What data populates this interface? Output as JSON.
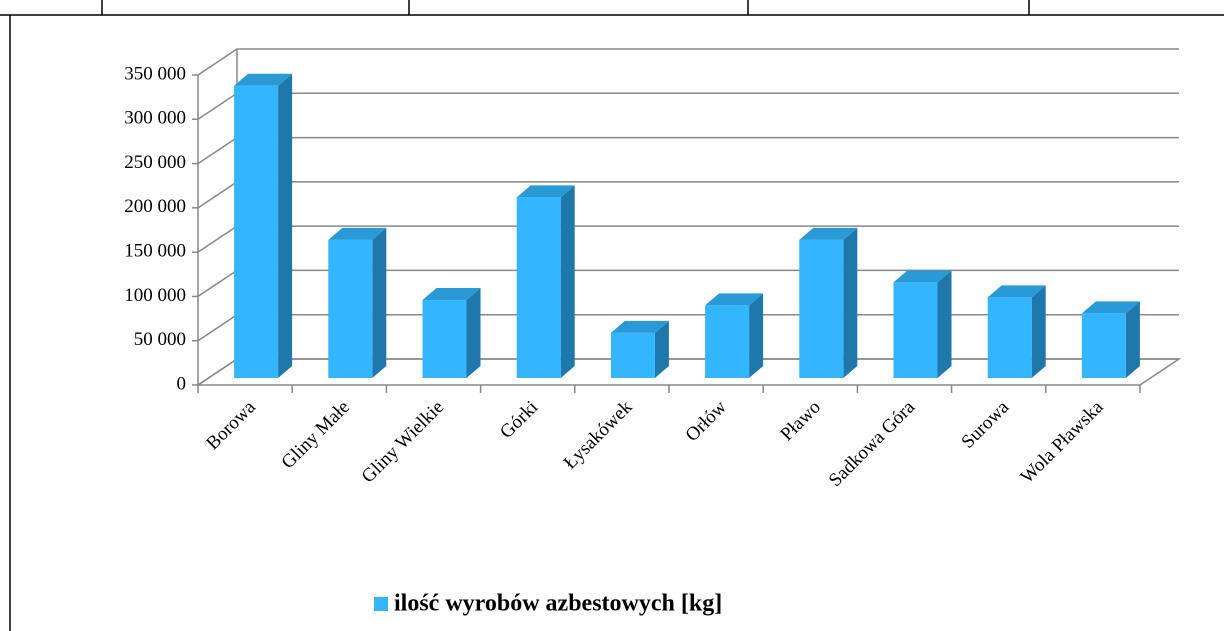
{
  "chart_data": {
    "type": "bar3d",
    "categories": [
      "Borowa",
      "Gliny Małe",
      "Gliny Wielkie",
      "Górki",
      "Łysakówek",
      "Orłów",
      "Pławo",
      "Sadkowa Góra",
      "Surowa",
      "Wola Pławska"
    ],
    "series": [
      {
        "name": "ilość wyrobów azbestowych [kg]",
        "color": "#33b5ff",
        "values": [
          330000,
          156000,
          88000,
          204000,
          51000,
          82000,
          156000,
          108000,
          91000,
          73000
        ]
      }
    ],
    "ylim": [
      0,
      350000
    ],
    "yticks": [
      0,
      {
        "value": 50000,
        "label": "50 000"
      },
      {
        "value": 100000,
        "label": "100 000"
      },
      {
        "value": 150000,
        "label": "150 000"
      },
      {
        "value": 200000,
        "label": "200 000"
      },
      {
        "value": 250000,
        "label": "250 000"
      },
      {
        "value": 300000,
        "label": "300 000"
      },
      {
        "value": 350000,
        "label": "350 000"
      }
    ],
    "grid": true,
    "legend": "bottom"
  }
}
